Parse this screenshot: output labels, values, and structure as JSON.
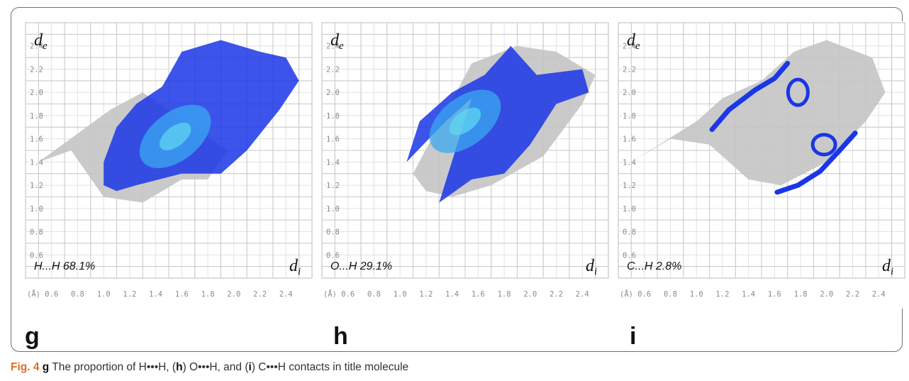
{
  "chart_data": [
    {
      "type": "heatmap",
      "panel_letter": "g",
      "contact": "H...H",
      "percent": "68.1%",
      "ylabel": "d",
      "ylabel_sub": "e",
      "xlabel": "d",
      "xlabel_sub": "i",
      "x_unit": "(Å)",
      "x_ticks": [
        "0.6",
        "0.8",
        "1.0",
        "1.2",
        "1.4",
        "1.6",
        "1.8",
        "2.0",
        "2.2",
        "2.4"
      ],
      "y_ticks": [
        "0.6",
        "0.8",
        "1.0",
        "1.2",
        "1.4",
        "1.6",
        "1.8",
        "2.0",
        "2.2",
        "2.4"
      ],
      "xlim": [
        0.4,
        2.6
      ],
      "ylim": [
        0.4,
        2.6
      ],
      "grid": true,
      "highlight_color": "#1a36e6",
      "background_color": "#c4c4c4",
      "highlight_region": [
        [
          1.0,
          1.2
        ],
        [
          1.1,
          1.15
        ],
        [
          1.25,
          1.2
        ],
        [
          1.6,
          1.3
        ],
        [
          1.9,
          1.3
        ],
        [
          2.1,
          1.5
        ],
        [
          2.35,
          1.85
        ],
        [
          2.5,
          2.1
        ],
        [
          2.4,
          2.3
        ],
        [
          2.2,
          2.35
        ],
        [
          1.9,
          2.45
        ],
        [
          1.6,
          2.35
        ],
        [
          1.45,
          2.05
        ],
        [
          1.25,
          1.9
        ],
        [
          1.1,
          1.7
        ],
        [
          1.0,
          1.4
        ]
      ],
      "grey_region": [
        [
          0.5,
          1.4
        ],
        [
          0.75,
          1.5
        ],
        [
          1.0,
          1.1
        ],
        [
          1.3,
          1.05
        ],
        [
          1.6,
          1.25
        ],
        [
          1.8,
          1.25
        ],
        [
          1.95,
          1.5
        ],
        [
          1.3,
          2.0
        ],
        [
          1.05,
          1.85
        ]
      ],
      "hot_spot": [
        1.55,
        1.62
      ]
    },
    {
      "type": "heatmap",
      "panel_letter": "h",
      "contact": "O...H",
      "percent": "29.1%",
      "ylabel": "d",
      "ylabel_sub": "e",
      "xlabel": "d",
      "xlabel_sub": "i",
      "x_unit": "(Å)",
      "x_ticks": [
        "0.6",
        "0.8",
        "1.0",
        "1.2",
        "1.4",
        "1.6",
        "1.8",
        "2.0",
        "2.2",
        "2.4"
      ],
      "y_ticks": [
        "0.6",
        "0.8",
        "1.0",
        "1.2",
        "1.4",
        "1.6",
        "1.8",
        "2.0",
        "2.2",
        "2.4"
      ],
      "xlim": [
        0.4,
        2.6
      ],
      "ylim": [
        0.4,
        2.6
      ],
      "grid": true,
      "highlight_color": "#1a36e6",
      "background_color": "#c4c4c4",
      "highlight_region": [
        [
          1.05,
          1.4
        ],
        [
          1.35,
          1.75
        ],
        [
          1.55,
          1.95
        ],
        [
          1.3,
          1.05
        ],
        [
          1.55,
          1.25
        ],
        [
          1.8,
          1.3
        ],
        [
          2.0,
          1.55
        ],
        [
          2.2,
          1.9
        ],
        [
          2.45,
          2.0
        ],
        [
          2.4,
          2.2
        ],
        [
          2.05,
          2.15
        ],
        [
          1.85,
          2.4
        ],
        [
          1.65,
          2.15
        ],
        [
          1.4,
          2.0
        ],
        [
          1.15,
          1.75
        ]
      ],
      "grey_region": [
        [
          1.1,
          1.3
        ],
        [
          1.2,
          1.15
        ],
        [
          1.4,
          1.1
        ],
        [
          1.7,
          1.2
        ],
        [
          2.1,
          1.45
        ],
        [
          2.4,
          1.9
        ],
        [
          2.5,
          2.15
        ],
        [
          2.2,
          2.35
        ],
        [
          1.9,
          2.4
        ],
        [
          1.55,
          2.25
        ]
      ],
      "hot_spot": [
        1.5,
        1.75
      ]
    },
    {
      "type": "heatmap",
      "panel_letter": "i",
      "contact": "C...H",
      "percent": "2.8%",
      "ylabel": "d",
      "ylabel_sub": "e",
      "xlabel": "d",
      "xlabel_sub": "i",
      "x_unit": "(Å)",
      "x_ticks": [
        "0.6",
        "0.8",
        "1.0",
        "1.2",
        "1.4",
        "1.6",
        "1.8",
        "2.0",
        "2.2",
        "2.4"
      ],
      "y_ticks": [
        "0.6",
        "0.8",
        "1.0",
        "1.2",
        "1.4",
        "1.6",
        "1.8",
        "2.0",
        "2.2",
        "2.4"
      ],
      "xlim": [
        0.4,
        2.6
      ],
      "ylim": [
        0.4,
        2.6
      ],
      "grid": true,
      "highlight_color": "#1a36e6",
      "background_color": "#c4c4c4",
      "highlight_upper_arm": [
        [
          1.12,
          1.68
        ],
        [
          1.25,
          1.85
        ],
        [
          1.45,
          2.02
        ],
        [
          1.6,
          2.12
        ],
        [
          1.7,
          2.25
        ]
      ],
      "highlight_upper_hook": [
        1.78,
        2.0
      ],
      "highlight_lower_arm": [
        [
          1.62,
          1.14
        ],
        [
          1.78,
          1.2
        ],
        [
          1.95,
          1.32
        ],
        [
          2.1,
          1.5
        ],
        [
          2.22,
          1.65
        ]
      ],
      "highlight_lower_hook": [
        1.98,
        1.55
      ],
      "grey_region": [
        [
          0.5,
          1.4
        ],
        [
          0.8,
          1.6
        ],
        [
          1.1,
          1.55
        ],
        [
          1.4,
          1.25
        ],
        [
          1.65,
          1.2
        ],
        [
          2.0,
          1.4
        ],
        [
          2.3,
          1.75
        ],
        [
          2.45,
          2.0
        ],
        [
          2.35,
          2.3
        ],
        [
          2.0,
          2.45
        ],
        [
          1.75,
          2.35
        ],
        [
          1.5,
          2.1
        ],
        [
          1.2,
          1.95
        ],
        [
          1.0,
          1.75
        ]
      ]
    }
  ],
  "caption": {
    "fig": "Fig. 4",
    "p1_letter": "g",
    "p1_text": " The proportion of H•••H, (",
    "p2_letter": "h",
    "p2_text": ") O•••H, and (",
    "p3_letter": "i",
    "p3_text": ") C•••H contacts in title molecule"
  }
}
